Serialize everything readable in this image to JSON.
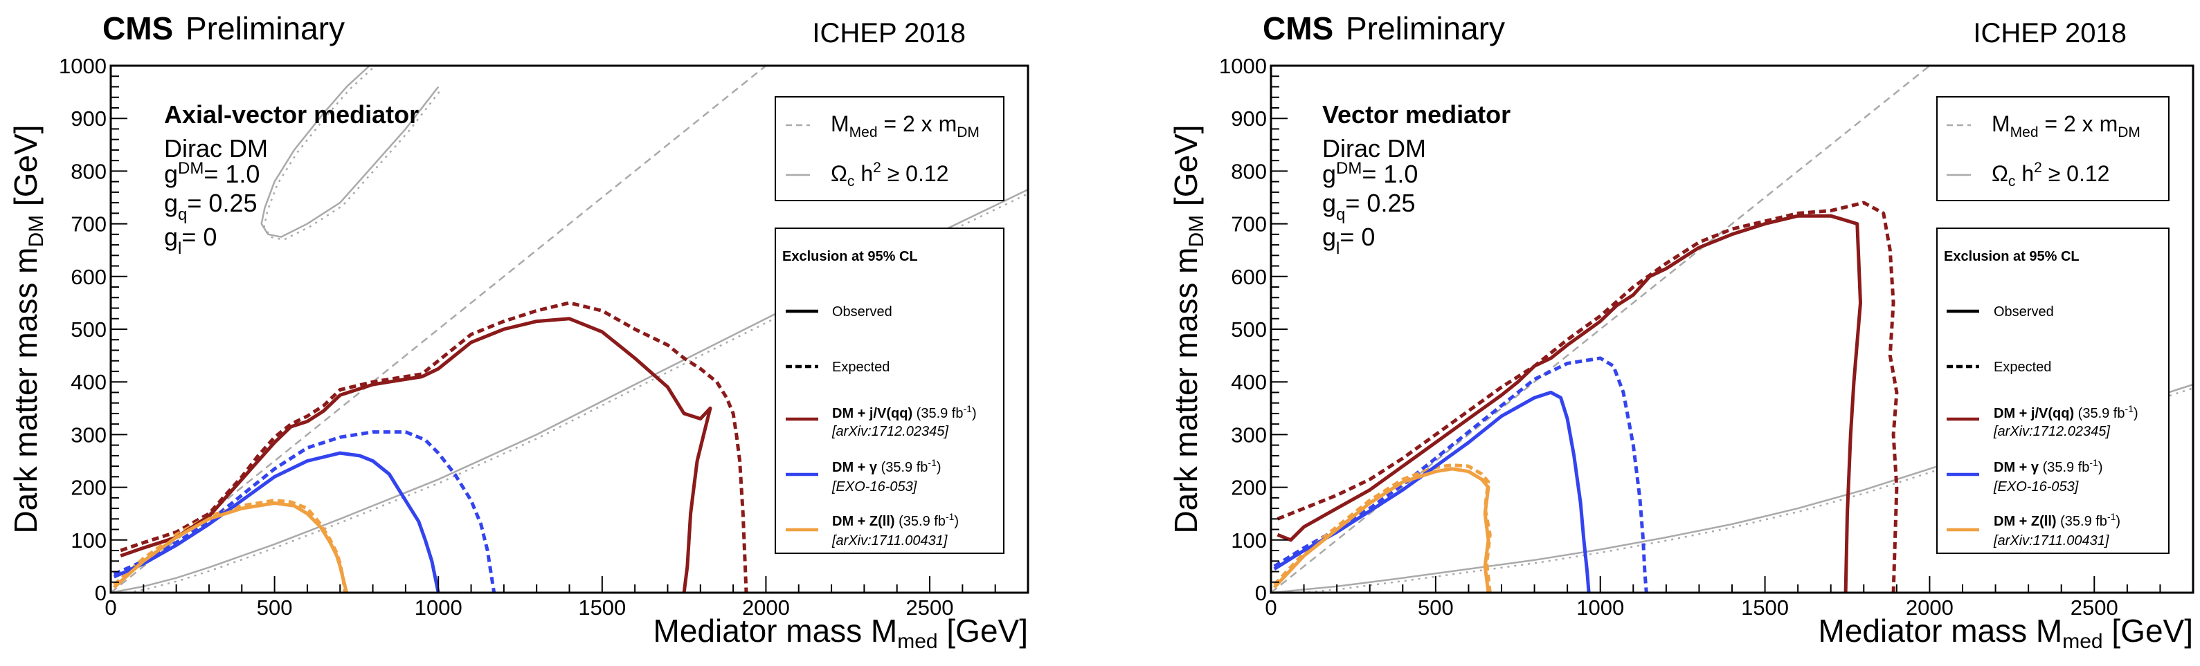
{
  "chart_data": [
    {
      "type": "line",
      "header": {
        "cms": "CMS",
        "status": "Preliminary",
        "conference": "ICHEP 2018"
      },
      "title": "Axial-vector mediator",
      "info": {
        "model": "Dirac DM",
        "g_dm": {
          "base": "g",
          "sub": "DM",
          "value": "= 1.0"
        },
        "g_q": {
          "base": "g",
          "sub": "q",
          "value": "= 0.25"
        },
        "g_l": {
          "base": "g",
          "sub": "l",
          "value": "= 0"
        }
      },
      "xlabel": {
        "main": "Mediator mass M",
        "sub": "med",
        "unit": " [GeV]"
      },
      "ylabel": {
        "main": "Dark matter mass m",
        "sub": "DM",
        "unit": " [GeV]"
      },
      "xlim": [
        0,
        2800
      ],
      "ylim": [
        0,
        1000
      ],
      "xticks": [
        0,
        500,
        1000,
        1500,
        2000,
        2500
      ],
      "yticks": [
        0,
        100,
        200,
        300,
        400,
        500,
        600,
        700,
        800,
        900,
        1000
      ],
      "legend_top": {
        "diagonal": {
          "a": "M",
          "a_sub": "Med",
          "b": " = 2 x m",
          "b_sub": "DM"
        },
        "relic": {
          "symbol": "Ω",
          "sub": "c",
          "mid": " h",
          "sup": "2",
          "tail": " ≥ 0.12"
        }
      },
      "legend_bottom": {
        "title": "Exclusion at 95% CL",
        "observed": "Observed",
        "expected": "Expected",
        "entries": [
          {
            "label": "DM + j/V(qq)",
            "lumi": " (35.9 fb",
            "lumi_sup": "-1",
            "lumi_end": ")",
            "ref": "[arXiv:1712.02345]",
            "color": "#8b1a1a"
          },
          {
            "label": "DM + γ",
            "lumi": " (35.9 fb",
            "lumi_sup": "-1",
            "lumi_end": ")",
            "ref": "[EXO-16-053]",
            "color": "#3344ee"
          },
          {
            "label": "DM + Z(ll)",
            "lumi": " (35.9 fb",
            "lumi_sup": "-1",
            "lumi_end": ")",
            "ref": "[arXiv:1711.00431]",
            "color": "#f0a040"
          }
        ]
      },
      "diagonal_line": {
        "x": [
          0,
          2000
        ],
        "y": [
          0,
          1000
        ],
        "color": "#aaaaaa"
      },
      "relic_curves": [
        {
          "x": [
            0,
            100,
            200,
            300,
            400,
            500,
            700,
            1000,
            1300,
            1600,
            2000,
            2400,
            2800
          ],
          "y": [
            0,
            12,
            28,
            48,
            70,
            92,
            140,
            215,
            300,
            395,
            520,
            645,
            765
          ],
          "color": "#aaaaaa"
        },
        {
          "x": [
            790,
            720,
            650,
            560,
            500,
            470,
            460,
            480,
            520,
            600,
            700,
            800,
            900,
            1000
          ],
          "y": [
            1000,
            960,
            910,
            840,
            780,
            730,
            700,
            680,
            675,
            700,
            740,
            810,
            880,
            960
          ],
          "color": "#aaaaaa"
        }
      ],
      "series": [
        {
          "name": "DM + j/V(qq) observed",
          "style": "solid",
          "color": "#8b1a1a",
          "x": [
            30,
            100,
            200,
            300,
            350,
            400,
            450,
            500,
            550,
            600,
            650,
            700,
            800,
            850,
            900,
            950,
            1000,
            1100,
            1200,
            1300,
            1400,
            1500,
            1600,
            1700,
            1750,
            1800,
            1830,
            1810,
            1790,
            1780,
            1770,
            1760,
            1750
          ],
          "y": [
            70,
            85,
            105,
            145,
            180,
            215,
            250,
            285,
            315,
            325,
            345,
            375,
            395,
            400,
            405,
            410,
            425,
            475,
            500,
            515,
            520,
            495,
            445,
            390,
            340,
            330,
            350,
            300,
            250,
            200,
            150,
            50,
            0
          ]
        },
        {
          "name": "DM + j/V(qq) expected",
          "style": "dashed",
          "color": "#8b1a1a",
          "x": [
            30,
            100,
            200,
            300,
            350,
            400,
            450,
            500,
            550,
            600,
            650,
            700,
            800,
            850,
            900,
            950,
            1000,
            1100,
            1200,
            1300,
            1400,
            1500,
            1600,
            1700,
            1750,
            1800,
            1850,
            1880,
            1900,
            1910,
            1920,
            1930,
            1940
          ],
          "y": [
            80,
            95,
            115,
            150,
            185,
            220,
            260,
            295,
            320,
            335,
            355,
            385,
            400,
            405,
            410,
            415,
            440,
            490,
            515,
            535,
            550,
            535,
            500,
            470,
            445,
            425,
            400,
            370,
            340,
            300,
            250,
            150,
            0
          ]
        },
        {
          "name": "DM + γ observed",
          "style": "solid",
          "color": "#3344ee",
          "x": [
            10,
            100,
            200,
            300,
            400,
            500,
            600,
            700,
            760,
            800,
            850,
            880,
            910,
            940,
            960,
            980,
            990,
            1000
          ],
          "y": [
            30,
            55,
            90,
            130,
            175,
            220,
            250,
            265,
            260,
            250,
            225,
            195,
            165,
            135,
            100,
            60,
            30,
            0
          ]
        },
        {
          "name": "DM + γ expected",
          "style": "dashed",
          "color": "#3344ee",
          "x": [
            10,
            100,
            200,
            300,
            400,
            500,
            600,
            700,
            800,
            900,
            960,
            1000,
            1050,
            1100,
            1130,
            1150,
            1160,
            1170
          ],
          "y": [
            35,
            60,
            95,
            135,
            185,
            235,
            275,
            295,
            305,
            305,
            290,
            265,
            225,
            175,
            130,
            80,
            40,
            0
          ]
        },
        {
          "name": "DM + Z(ll) observed",
          "style": "solid",
          "color": "#f0a040",
          "x": [
            10,
            100,
            200,
            300,
            400,
            500,
            560,
            600,
            640,
            670,
            690,
            700,
            710,
            720
          ],
          "y": [
            10,
            60,
            105,
            140,
            160,
            170,
            165,
            150,
            125,
            95,
            70,
            50,
            25,
            0
          ]
        },
        {
          "name": "DM + Z(ll) expected",
          "style": "dashed",
          "color": "#f0a040",
          "x": [
            10,
            100,
            200,
            300,
            400,
            500,
            550,
            600,
            640,
            670,
            690,
            700,
            710,
            715
          ],
          "y": [
            15,
            65,
            110,
            145,
            165,
            175,
            172,
            160,
            130,
            100,
            75,
            55,
            25,
            0
          ]
        }
      ]
    },
    {
      "type": "line",
      "header": {
        "cms": "CMS",
        "status": "Preliminary",
        "conference": "ICHEP 2018"
      },
      "title": "Vector mediator",
      "info": {
        "model": "Dirac DM",
        "g_dm": {
          "base": "g",
          "sub": "DM",
          "value": "= 1.0"
        },
        "g_q": {
          "base": "g",
          "sub": "q",
          "value": "= 0.25"
        },
        "g_l": {
          "base": "g",
          "sub": "l",
          "value": "= 0"
        }
      },
      "xlabel": {
        "main": "Mediator mass M",
        "sub": "med",
        "unit": " [GeV]"
      },
      "ylabel": {
        "main": "Dark matter mass m",
        "sub": "DM",
        "unit": " [GeV]"
      },
      "xlim": [
        0,
        2800
      ],
      "ylim": [
        0,
        1000
      ],
      "xticks": [
        0,
        500,
        1000,
        1500,
        2000,
        2500
      ],
      "yticks": [
        0,
        100,
        200,
        300,
        400,
        500,
        600,
        700,
        800,
        900,
        1000
      ],
      "legend_top": {
        "diagonal": {
          "a": "M",
          "a_sub": "Med",
          "b": " = 2 x m",
          "b_sub": "DM"
        },
        "relic": {
          "symbol": "Ω",
          "sub": "c",
          "mid": " h",
          "sup": "2",
          "tail": " ≥ 0.12"
        }
      },
      "legend_bottom": {
        "title": "Exclusion at 95% CL",
        "observed": "Observed",
        "expected": "Expected",
        "entries": [
          {
            "label": "DM + j/V(qq)",
            "lumi": " (35.9 fb",
            "lumi_sup": "-1",
            "lumi_end": ")",
            "ref": "[arXiv:1712.02345]",
            "color": "#8b1a1a"
          },
          {
            "label": "DM + γ",
            "lumi": " (35.9 fb",
            "lumi_sup": "-1",
            "lumi_end": ")",
            "ref": "[EXO-16-053]",
            "color": "#3344ee"
          },
          {
            "label": "DM + Z(ll)",
            "lumi": " (35.9 fb",
            "lumi_sup": "-1",
            "lumi_end": ")",
            "ref": "[arXiv:1711.00431]",
            "color": "#f0a040"
          }
        ]
      },
      "diagonal_line": {
        "x": [
          0,
          2000
        ],
        "y": [
          0,
          1000
        ],
        "color": "#aaaaaa"
      },
      "relic_curves": [
        {
          "x": [
            0,
            200,
            400,
            600,
            800,
            1000,
            1200,
            1400,
            1600,
            1800,
            2000,
            2200,
            2400,
            2600,
            2800
          ],
          "y": [
            0,
            12,
            28,
            45,
            62,
            82,
            105,
            130,
            160,
            195,
            235,
            275,
            315,
            355,
            395
          ],
          "color": "#aaaaaa"
        }
      ],
      "series": [
        {
          "name": "DM + j/V(qq) observed",
          "style": "solid",
          "color": "#8b1a1a",
          "x": [
            20,
            60,
            100,
            200,
            300,
            400,
            500,
            600,
            700,
            750,
            800,
            850,
            900,
            1000,
            1050,
            1100,
            1150,
            1200,
            1250,
            1300,
            1400,
            1500,
            1600,
            1700,
            1780,
            1790,
            1770,
            1760,
            1750,
            1745
          ],
          "y": [
            110,
            100,
            125,
            160,
            195,
            240,
            285,
            330,
            375,
            400,
            430,
            445,
            470,
            515,
            545,
            565,
            600,
            615,
            635,
            655,
            680,
            700,
            715,
            715,
            700,
            550,
            400,
            300,
            150,
            0
          ]
        },
        {
          "name": "DM + j/V(qq) expected",
          "style": "dashed",
          "color": "#8b1a1a",
          "x": [
            20,
            100,
            200,
            300,
            400,
            500,
            600,
            700,
            800,
            900,
            1000,
            1100,
            1200,
            1300,
            1400,
            1500,
            1600,
            1700,
            1800,
            1860,
            1880,
            1890,
            1880,
            1900,
            1890,
            1900,
            1890
          ],
          "y": [
            140,
            160,
            185,
            215,
            255,
            300,
            345,
            390,
            430,
            480,
            525,
            580,
            625,
            665,
            690,
            705,
            720,
            725,
            740,
            720,
            650,
            550,
            450,
            380,
            300,
            200,
            0
          ]
        },
        {
          "name": "DM + γ observed",
          "style": "solid",
          "color": "#3344ee",
          "x": [
            10,
            100,
            200,
            300,
            400,
            500,
            600,
            700,
            800,
            850,
            880,
            900,
            920,
            940,
            950,
            960,
            965
          ],
          "y": [
            45,
            80,
            115,
            155,
            195,
            240,
            285,
            335,
            370,
            380,
            370,
            330,
            260,
            170,
            100,
            40,
            0
          ]
        },
        {
          "name": "DM + γ expected",
          "style": "dashed",
          "color": "#3344ee",
          "x": [
            10,
            100,
            200,
            300,
            400,
            500,
            600,
            700,
            800,
            900,
            1000,
            1040,
            1070,
            1100,
            1120,
            1130,
            1135,
            1140
          ],
          "y": [
            50,
            85,
            120,
            160,
            205,
            255,
            305,
            355,
            405,
            435,
            445,
            430,
            380,
            280,
            180,
            100,
            40,
            0
          ]
        },
        {
          "name": "DM + Z(ll) observed",
          "style": "solid",
          "color": "#f0a040",
          "x": [
            10,
            100,
            200,
            300,
            400,
            500,
            550,
            600,
            640,
            660,
            650,
            660,
            650,
            660
          ],
          "y": [
            10,
            70,
            120,
            170,
            210,
            230,
            235,
            230,
            215,
            200,
            150,
            100,
            50,
            0
          ]
        },
        {
          "name": "DM + Z(ll) expected",
          "style": "dashed",
          "color": "#f0a040",
          "x": [
            10,
            100,
            200,
            300,
            400,
            500,
            550,
            600,
            640,
            660,
            650,
            665,
            655,
            665
          ],
          "y": [
            15,
            75,
            125,
            175,
            215,
            238,
            242,
            240,
            225,
            210,
            160,
            110,
            55,
            0
          ]
        }
      ]
    }
  ]
}
